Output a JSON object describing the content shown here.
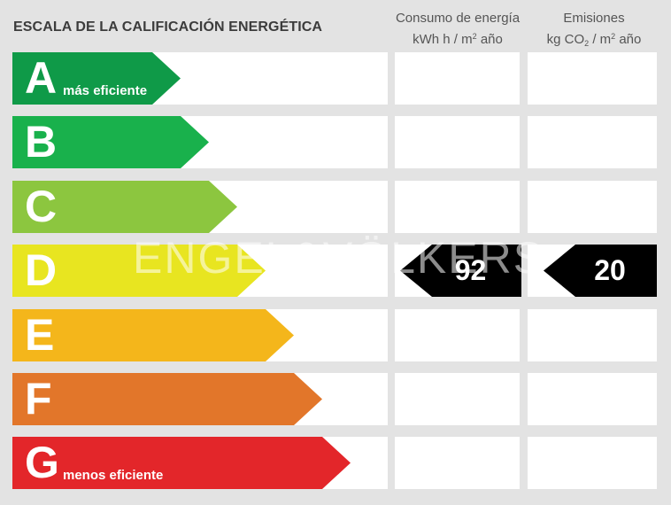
{
  "title": "ESCALA DE LA CALIFICACIÓN ENERGÉTICA",
  "columns": {
    "consumo": {
      "line1": "Consumo de energía",
      "line2_a": "kWh h  / m",
      "line2_sup": "2",
      "line2_b": " año"
    },
    "emisiones": {
      "line1": "Emisiones",
      "line2_a": "kg CO",
      "line2_sub": "2",
      "line2_b": "  / m",
      "line2_sup": "2",
      "line2_c": " año"
    }
  },
  "ratings": [
    {
      "letter": "A",
      "label": "más eficiente",
      "color": "#0f9a48"
    },
    {
      "letter": "B",
      "label": "",
      "color": "#19b14c"
    },
    {
      "letter": "C",
      "label": "",
      "color": "#8cc63f"
    },
    {
      "letter": "D",
      "label": "",
      "color": "#e8e520"
    },
    {
      "letter": "E",
      "label": "",
      "color": "#f4b61b"
    },
    {
      "letter": "F",
      "label": "",
      "color": "#e2762a"
    },
    {
      "letter": "G",
      "label": "menos eficiente",
      "color": "#e3262a"
    }
  ],
  "current_rating": "D",
  "consumo_value": "92",
  "emisiones_value": "20",
  "watermark": "ENGEL&VÖLKERS"
}
